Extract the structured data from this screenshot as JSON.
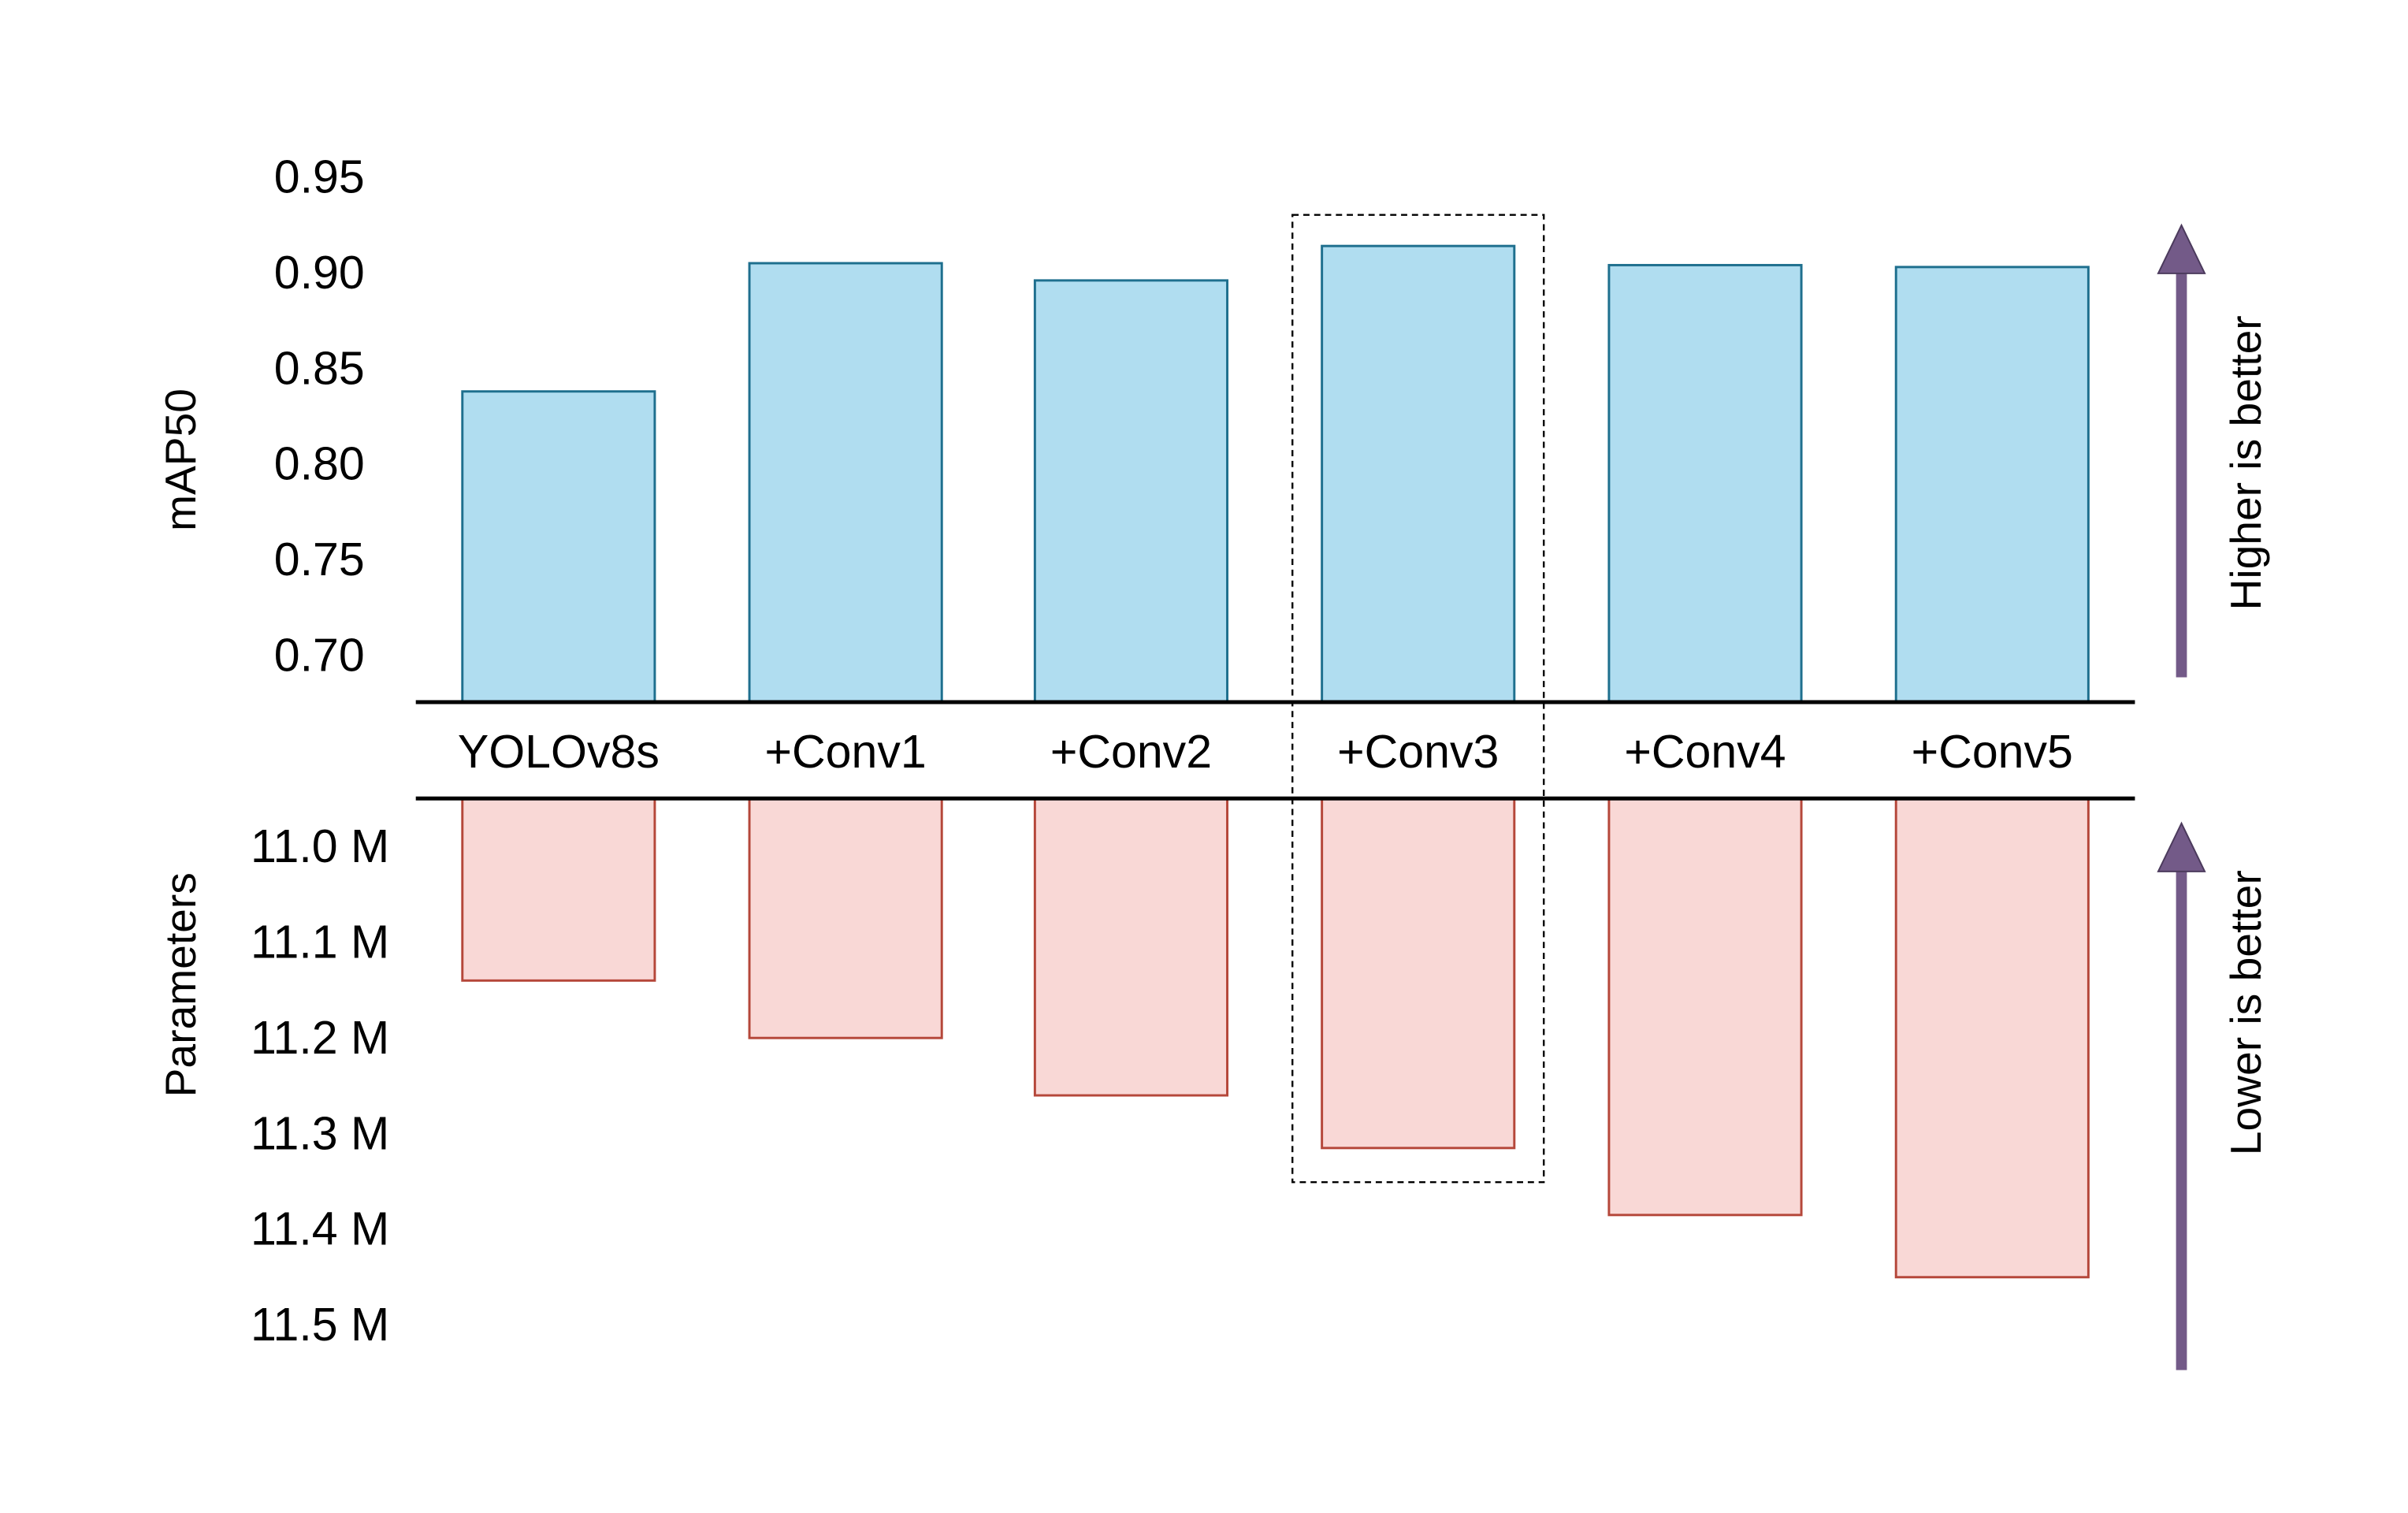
{
  "chart_data": [
    {
      "type": "bar",
      "name": "accuracy",
      "categories": [
        "YOLOv8s",
        "+Conv1",
        "+Conv2",
        "+Conv3",
        "+Conv4",
        "+Conv5"
      ],
      "values": [
        0.838,
        0.905,
        0.896,
        0.914,
        0.904,
        0.903
      ],
      "ylabel": "mAP50",
      "ylim": [
        0.675,
        0.95
      ],
      "yticks": [
        0.95,
        0.9,
        0.85,
        0.8,
        0.75,
        0.7
      ],
      "ytick_labels": [
        "0.95",
        "0.90",
        "0.85",
        "0.80",
        "0.75",
        "0.70"
      ],
      "annotation": "Higher is better",
      "bar_fill": "#b0ddf0",
      "bar_stroke": "#1e6f8e"
    },
    {
      "type": "bar",
      "name": "parameters",
      "categories": [
        "YOLOv8s",
        "+Conv1",
        "+Conv2",
        "+Conv3",
        "+Conv4",
        "+Conv5"
      ],
      "values": [
        11.14,
        11.2,
        11.26,
        11.315,
        11.385,
        11.45
      ],
      "units": "M",
      "ylabel": "Parameters",
      "ylim": [
        10.95,
        11.5
      ],
      "inverted": true,
      "yticks": [
        11.0,
        11.1,
        11.2,
        11.3,
        11.4,
        11.5
      ],
      "ytick_labels": [
        "11.0 M",
        "11.1 M",
        "11.2 M",
        "11.3 M",
        "11.4 M",
        "11.5 M"
      ],
      "annotation": "Lower is better",
      "bar_fill": "#f9d8d6",
      "bar_stroke": "#b5473a"
    }
  ],
  "highlight_category": "+Conv3",
  "colors": {
    "arrow": "#735a88",
    "axis": "#000000",
    "text": "#000000"
  }
}
